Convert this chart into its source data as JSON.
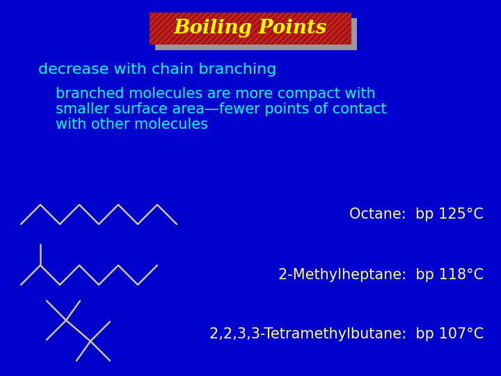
{
  "bg_color": "#0000CC",
  "title_text": "Boiling Points",
  "title_color": "#FFFF00",
  "title_box_color": "#AA1111",
  "title_shadow_color": "#999999",
  "subtitle1_text": "decrease with chain branching",
  "subtitle1_color": "#00FFFF",
  "subtitle2_lines": [
    "branched molecules are more compact with",
    "smaller surface area—fewer points of contact",
    "with other molecules"
  ],
  "subtitle2_color": "#00FFFF",
  "molecule_color": "#CCCC88",
  "label1": "Octane:  bp 125°C",
  "label2": "2-Methylheptane:  bp 118°C",
  "label3": "2,2,3,3-Tetramethylbutane:  bp 107°C",
  "label_color": "#FFFF88",
  "label_fontsize": 15,
  "title_fontsize": 20,
  "sub1_fontsize": 16,
  "sub2_fontsize": 15
}
